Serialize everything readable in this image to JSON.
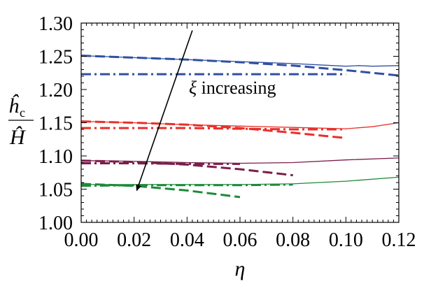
{
  "chart_data": {
    "type": "line",
    "title": "",
    "xlabel": "η",
    "ylabel_numerator": "ĥ",
    "ylabel_subscript": "c",
    "ylabel_denominator": "Ĥ",
    "xlim": [
      0.0,
      0.12
    ],
    "ylim": [
      1.0,
      1.3
    ],
    "xticks": [
      0.0,
      0.02,
      0.04,
      0.06,
      0.08,
      0.1,
      0.12
    ],
    "xtick_labels": [
      "0.00",
      "0.02",
      "0.04",
      "0.06",
      "0.08",
      "0.10",
      "0.12"
    ],
    "yticks": [
      1.0,
      1.05,
      1.1,
      1.15,
      1.2,
      1.25,
      1.3
    ],
    "ytick_labels": [
      "1.00",
      "1.05",
      "1.10",
      "1.15",
      "1.20",
      "1.25",
      "1.30"
    ],
    "annotation": {
      "symbol": "ξ",
      "text": " increasing",
      "arrow_from": [
        0.042,
        1.289
      ],
      "arrow_to": [
        0.021,
        1.048
      ]
    },
    "series": [
      {
        "name": "blue-solid",
        "color": "#3050a0",
        "style": "solid",
        "x": [
          0.0,
          0.02,
          0.04,
          0.06,
          0.08,
          0.09,
          0.1,
          0.105,
          0.11,
          0.12
        ],
        "y": [
          1.251,
          1.248,
          1.245,
          1.242,
          1.239,
          1.237,
          1.235,
          1.236,
          1.235,
          1.236
        ]
      },
      {
        "name": "blue-dashed",
        "color": "#3050a0",
        "style": "dashed",
        "x": [
          0.0,
          0.02,
          0.04,
          0.06,
          0.08,
          0.1,
          0.12
        ],
        "y": [
          1.251,
          1.248,
          1.245,
          1.241,
          1.236,
          1.229,
          1.221
        ]
      },
      {
        "name": "blue-dashdot",
        "color": "#3050a0",
        "style": "dashdot",
        "x": [
          0.0,
          0.02,
          0.04,
          0.06,
          0.08,
          0.1
        ],
        "y": [
          1.223,
          1.223,
          1.223,
          1.223,
          1.223,
          1.223
        ]
      },
      {
        "name": "red-solid",
        "color": "#e8302a",
        "style": "solid",
        "x": [
          0.0,
          0.02,
          0.04,
          0.06,
          0.08,
          0.1,
          0.11,
          0.12
        ],
        "y": [
          1.152,
          1.15,
          1.147,
          1.145,
          1.143,
          1.141,
          1.144,
          1.15
        ]
      },
      {
        "name": "red-dashed",
        "color": "#e8302a",
        "style": "dashed",
        "x": [
          0.0,
          0.02,
          0.04,
          0.06,
          0.08,
          0.1
        ],
        "y": [
          1.152,
          1.15,
          1.147,
          1.142,
          1.135,
          1.127
        ]
      },
      {
        "name": "red-dashdot",
        "color": "#e8302a",
        "style": "dashdot",
        "x": [
          0.0,
          0.02,
          0.04,
          0.06,
          0.08,
          0.1
        ],
        "y": [
          1.142,
          1.142,
          1.142,
          1.141,
          1.14,
          1.14
        ]
      },
      {
        "name": "maroon-solid",
        "color": "#7a1e4a",
        "style": "solid",
        "x": [
          0.0,
          0.02,
          0.04,
          0.06,
          0.08,
          0.1,
          0.12
        ],
        "y": [
          1.093,
          1.092,
          1.09,
          1.089,
          1.09,
          1.094,
          1.097
        ]
      },
      {
        "name": "maroon-dashed",
        "color": "#7a1e4a",
        "style": "dashed",
        "x": [
          0.0,
          0.02,
          0.04,
          0.06,
          0.08
        ],
        "y": [
          1.093,
          1.091,
          1.087,
          1.08,
          1.071
        ]
      },
      {
        "name": "maroon-dashdot",
        "color": "#7a1e4a",
        "style": "dashdot",
        "x": [
          0.0,
          0.02,
          0.04,
          0.06
        ],
        "y": [
          1.089,
          1.089,
          1.088,
          1.088
        ]
      },
      {
        "name": "green-solid",
        "color": "#1d8a3a",
        "style": "solid",
        "x": [
          0.0,
          0.02,
          0.04,
          0.06,
          0.08,
          0.1,
          0.12
        ],
        "y": [
          1.057,
          1.057,
          1.057,
          1.057,
          1.058,
          1.062,
          1.068
        ]
      },
      {
        "name": "green-dashed",
        "color": "#1d8a3a",
        "style": "dashed",
        "x": [
          0.0,
          0.02,
          0.04,
          0.06
        ],
        "y": [
          1.058,
          1.055,
          1.048,
          1.038
        ]
      },
      {
        "name": "green-dashdot",
        "color": "#1d8a3a",
        "style": "dashdot",
        "x": [
          0.0,
          0.02,
          0.04,
          0.06,
          0.08
        ],
        "y": [
          1.055,
          1.056,
          1.056,
          1.056,
          1.057
        ]
      }
    ]
  }
}
